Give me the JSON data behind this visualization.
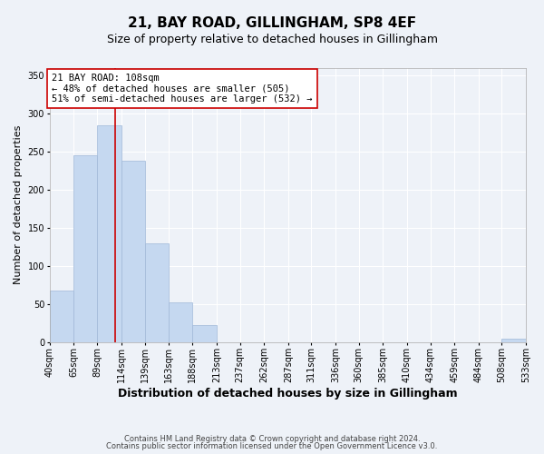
{
  "title": "21, BAY ROAD, GILLINGHAM, SP8 4EF",
  "subtitle": "Size of property relative to detached houses in Gillingham",
  "xlabel": "Distribution of detached houses by size in Gillingham",
  "ylabel": "Number of detached properties",
  "bar_color": "#c5d8f0",
  "bar_edge_color": "#a0b8d8",
  "bg_color": "#eef2f8",
  "grid_color": "#ffffff",
  "vline_x": 108,
  "vline_color": "#cc0000",
  "annotation_text": "21 BAY ROAD: 108sqm\n← 48% of detached houses are smaller (505)\n51% of semi-detached houses are larger (532) →",
  "annotation_box_color": "#ffffff",
  "annotation_box_edge": "#cc0000",
  "bins": [
    40,
    65,
    89,
    114,
    139,
    163,
    188,
    213,
    237,
    262,
    287,
    311,
    336,
    360,
    385,
    410,
    434,
    459,
    484,
    508,
    533
  ],
  "counts": [
    68,
    245,
    285,
    238,
    130,
    52,
    22,
    0,
    0,
    0,
    0,
    0,
    0,
    0,
    0,
    0,
    0,
    0,
    0,
    4
  ],
  "ylim": [
    0,
    360
  ],
  "yticks": [
    0,
    50,
    100,
    150,
    200,
    250,
    300,
    350
  ],
  "footer1": "Contains HM Land Registry data © Crown copyright and database right 2024.",
  "footer2": "Contains public sector information licensed under the Open Government Licence v3.0.",
  "title_fontsize": 11,
  "subtitle_fontsize": 9,
  "xlabel_fontsize": 9,
  "ylabel_fontsize": 8,
  "tick_fontsize": 7,
  "annotation_fontsize": 7.5,
  "footer_fontsize": 6
}
